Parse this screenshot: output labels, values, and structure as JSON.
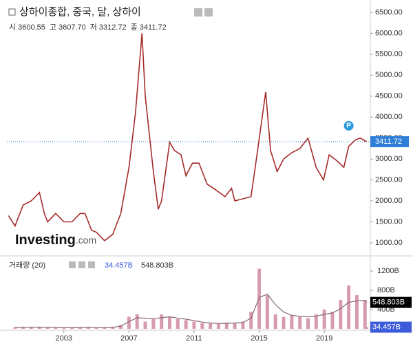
{
  "header": {
    "title": "상하이종합, 중국, 달, 상하이",
    "ohlc": [
      {
        "label": "시",
        "value": "3600.55"
      },
      {
        "label": "고",
        "value": "3607.70"
      },
      {
        "label": "저",
        "value": "3312.72"
      },
      {
        "label": "종",
        "value": "3411.72"
      }
    ],
    "logo": "Investing",
    "logo_suffix": ".com",
    "marker": "P"
  },
  "chart_data": [
    {
      "type": "line",
      "color": "#a52a2a",
      "x": [
        1999.6,
        2000.0,
        2000.5,
        2001.0,
        2001.5,
        2001.8,
        2002.0,
        2002.5,
        2003.0,
        2003.5,
        2004.0,
        2004.3,
        2004.7,
        2005.0,
        2005.5,
        2006.0,
        2006.5,
        2007.0,
        2007.4,
        2007.8,
        2008.0,
        2008.5,
        2008.8,
        2009.0,
        2009.5,
        2009.8,
        2010.2,
        2010.5,
        2010.9,
        2011.3,
        2011.8,
        2012.2,
        2012.9,
        2013.3,
        2013.5,
        2014.0,
        2014.5,
        2014.9,
        2015.4,
        2015.7,
        2016.1,
        2016.5,
        2017.0,
        2017.5,
        2018.0,
        2018.5,
        2018.95,
        2019.3,
        2019.8,
        2020.2,
        2020.5,
        2020.9,
        2021.2,
        2021.6
      ],
      "values": [
        1650,
        1400,
        1900,
        2000,
        2200,
        1700,
        1500,
        1700,
        1500,
        1500,
        1700,
        1700,
        1300,
        1250,
        1050,
        1200,
        1700,
        2800,
        4100,
        6000,
        4500,
        2700,
        1800,
        2000,
        3400,
        3200,
        3100,
        2600,
        2900,
        2900,
        2400,
        2300,
        2100,
        2300,
        2000,
        2050,
        2100,
        3200,
        4600,
        3200,
        2700,
        3000,
        3150,
        3250,
        3500,
        2800,
        2500,
        3100,
        2950,
        2800,
        3300,
        3450,
        3500,
        3411.72
      ],
      "last_price": 3411.72,
      "last_color": "#2f7fd8",
      "xlim": [
        1999.5,
        2021.7
      ],
      "xticks": [
        2003,
        2007,
        2011,
        2015,
        2019
      ],
      "ylim": [
        720,
        6630
      ],
      "yticks": [
        {
          "value": 1000,
          "label": "1000.00"
        },
        {
          "value": 1500,
          "label": "1500.00"
        },
        {
          "value": 2000,
          "label": "2000.00"
        },
        {
          "value": 2500,
          "label": "2500.00"
        },
        {
          "value": 3000,
          "label": "3000.00"
        },
        {
          "value": 3500,
          "label": "3500.00"
        },
        {
          "value": 4000,
          "label": "4000.00"
        },
        {
          "value": 4500,
          "label": "4500.00"
        },
        {
          "value": 5000,
          "label": "5000.00"
        },
        {
          "value": 5500,
          "label": "5500.00"
        },
        {
          "value": 6000,
          "label": "6000.00"
        },
        {
          "value": 6500,
          "label": "6500.00"
        }
      ]
    },
    {
      "type": "bar",
      "title": "거래량 (20)",
      "x": [
        2000.0,
        2000.5,
        2001.0,
        2001.5,
        2002.0,
        2002.5,
        2003.0,
        2003.5,
        2004.0,
        2004.5,
        2005.0,
        2005.5,
        2006.0,
        2006.5,
        2007.0,
        2007.5,
        2008.0,
        2008.5,
        2009.0,
        2009.5,
        2010.0,
        2010.5,
        2011.0,
        2011.5,
        2012.0,
        2012.5,
        2013.0,
        2013.5,
        2014.0,
        2014.5,
        2015.0,
        2015.5,
        2016.0,
        2016.5,
        2017.0,
        2017.5,
        2018.0,
        2018.5,
        2019.0,
        2019.5,
        2020.0,
        2020.5,
        2021.0,
        2021.5,
        2021.6
      ],
      "series": [
        {
          "name": "volume",
          "color": "#d79bb0",
          "last_label": "34.457B",
          "label_color": "#3b5bdb",
          "values": [
            30,
            25,
            40,
            35,
            30,
            20,
            25,
            20,
            35,
            30,
            20,
            25,
            40,
            80,
            250,
            300,
            150,
            200,
            300,
            250,
            200,
            180,
            150,
            120,
            110,
            100,
            130,
            120,
            150,
            350,
            1250,
            700,
            300,
            250,
            280,
            250,
            220,
            300,
            400,
            350,
            600,
            900,
            700,
            600,
            34.457
          ]
        },
        {
          "name": "ma",
          "color": "#8a6a6a",
          "last_label": "548.803B",
          "label_color": "#000000",
          "values": [
            30,
            30,
            33,
            35,
            32,
            28,
            25,
            22,
            28,
            30,
            26,
            25,
            30,
            55,
            150,
            230,
            220,
            210,
            230,
            250,
            220,
            200,
            170,
            140,
            120,
            110,
            115,
            120,
            130,
            220,
            650,
            720,
            500,
            350,
            280,
            260,
            250,
            260,
            300,
            330,
            420,
            550,
            580,
            590,
            548.803
          ]
        }
      ],
      "ylim": [
        0,
        1430
      ],
      "yticks": [
        {
          "value": 400,
          "label": "400B"
        },
        {
          "value": 800,
          "label": "800B"
        },
        {
          "value": 1200,
          "label": "1200B"
        }
      ]
    }
  ]
}
